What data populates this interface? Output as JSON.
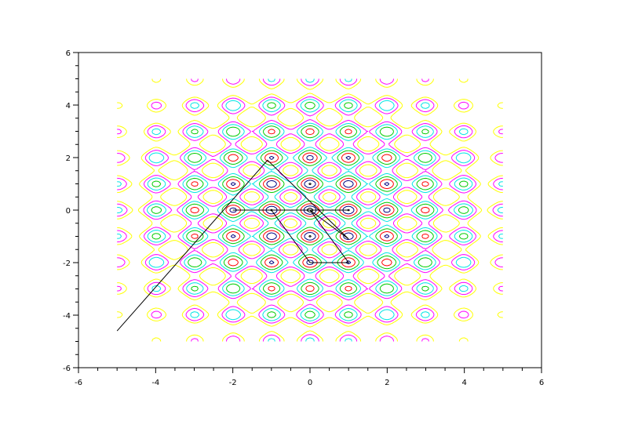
{
  "chart_data": {
    "type": "contour",
    "title": "",
    "xlabel": "",
    "ylabel": "",
    "xlim": [
      -6,
      6
    ],
    "ylim": [
      -6,
      6
    ],
    "grid": false,
    "legend": "none",
    "x_ticks": [
      -6,
      -4,
      -2,
      0,
      2,
      4,
      6
    ],
    "y_ticks": [
      -6,
      -4,
      -2,
      0,
      2,
      4,
      6
    ],
    "x_tick_labels": [
      "-6",
      "-4",
      "-2",
      "0",
      "2",
      "4",
      "6"
    ],
    "y_tick_labels": [
      "-6",
      "-4",
      "-2",
      "0",
      "2",
      "4",
      "6"
    ],
    "contour_domain": {
      "x": [
        -5,
        5
      ],
      "y": [
        -5,
        5
      ]
    },
    "contour_level_colors": [
      "#000000",
      "#000080",
      "#ff0000",
      "#00cc00",
      "#00e5e5",
      "#ff00ff",
      "#ffff00"
    ],
    "search_path": [
      {
        "x": -5.0,
        "y": -4.6
      },
      {
        "x": -1.1,
        "y": 1.9
      },
      {
        "x": 1.0,
        "y": -1.1
      },
      {
        "x": 0.0,
        "y": 0.0
      },
      {
        "x": 1.0,
        "y": 0.0
      },
      {
        "x": -2.0,
        "y": 0.0
      },
      {
        "x": -1.0,
        "y": 0.0
      },
      {
        "x": 0.0,
        "y": -2.0
      },
      {
        "x": 1.0,
        "y": -2.0
      },
      {
        "x": 0.0,
        "y": 0.0
      },
      {
        "x": -0.5,
        "y": 0.0
      },
      {
        "x": 0.0,
        "y": 0.0
      },
      {
        "x": -0.2,
        "y": 0.0
      },
      {
        "x": 0.0,
        "y": 0.0
      },
      {
        "x": -0.3,
        "y": 0.0
      },
      {
        "x": 0.0,
        "y": 0.0
      }
    ]
  }
}
